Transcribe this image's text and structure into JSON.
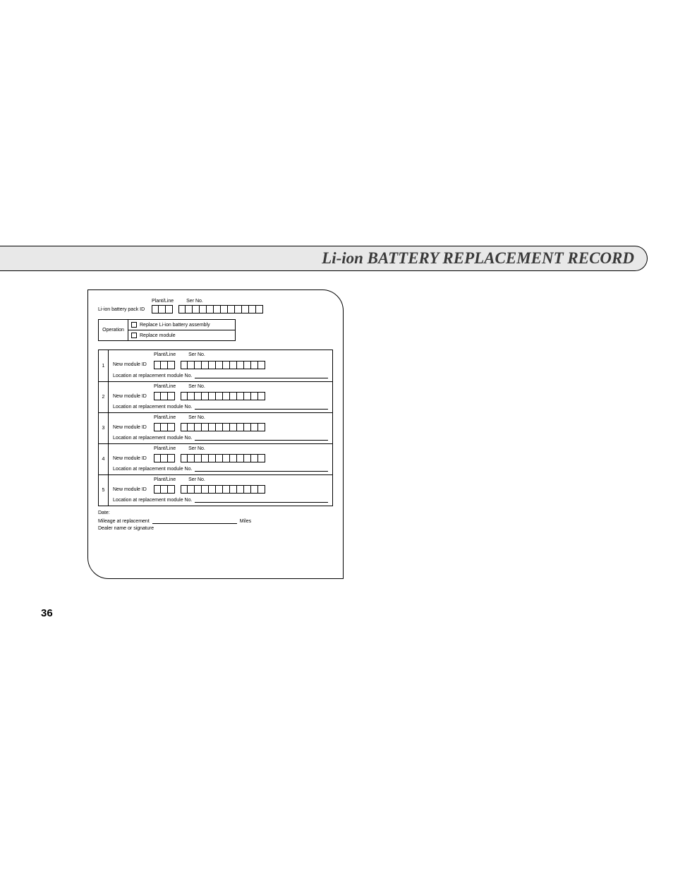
{
  "title": "Li-ion BATTERY REPLACEMENT RECORD",
  "page_number": "36",
  "header": {
    "plant_line": "Plant/Line",
    "ser_no": "Ser No.",
    "pack_id_label": "Li-ion battery pack ID",
    "plant_boxes": 3,
    "ser_boxes": 12
  },
  "operation": {
    "label": "Operation",
    "opt1": "Replace Li-ion battery assembly",
    "opt2": "Replace module"
  },
  "module_labels": {
    "new_module_id": "New module ID",
    "plant_line": "Plant/Line",
    "ser_no": "Ser No.",
    "location": "Location at replacement module  No.",
    "plant_boxes": 3,
    "ser_boxes": 12
  },
  "module_rows": [
    "1",
    "2",
    "3",
    "4",
    "5"
  ],
  "footer": {
    "date": "Date:",
    "mileage": "Mileage at replacement",
    "miles": "Miles",
    "dealer": "Dealer name or signature"
  },
  "colors": {
    "title_bg": "#e8e8e8",
    "title_text": "#3a3a3a",
    "line": "#000000",
    "page_bg": "#ffffff"
  }
}
